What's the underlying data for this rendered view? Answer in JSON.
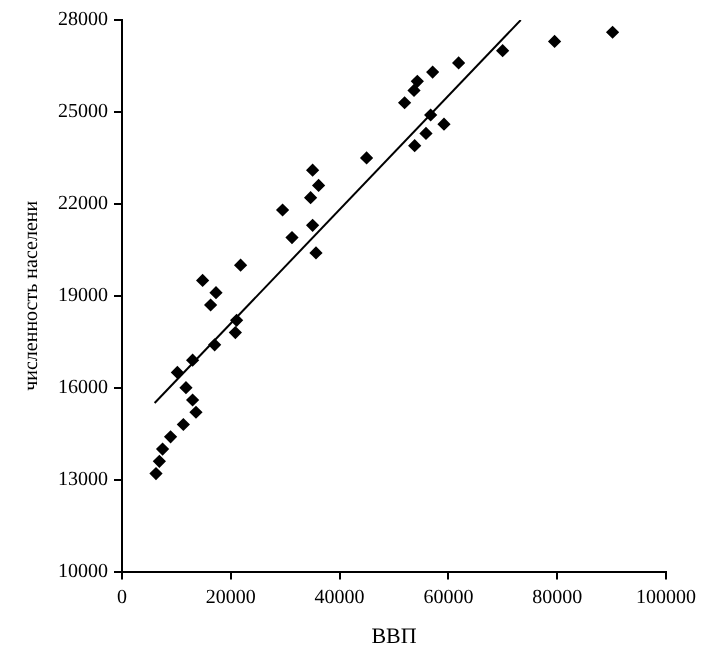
{
  "chart_data": {
    "type": "scatter",
    "xlabel": "ВВП",
    "ylabel": "численность населени",
    "xlim": [
      0,
      100000
    ],
    "ylim": [
      10000,
      28000
    ],
    "xticks": [
      0,
      20000,
      40000,
      60000,
      80000,
      100000
    ],
    "yticks": [
      10000,
      13000,
      16000,
      19000,
      22000,
      25000,
      28000
    ],
    "grid": false,
    "legend": false,
    "series": [
      {
        "marker": "diamond",
        "color": "#000000",
        "x": [
          6250,
          6870,
          7460,
          8930,
          10180,
          11280,
          11760,
          12980,
          12980,
          13600,
          17030,
          20840,
          21070,
          14820,
          16290,
          17280,
          21800,
          29520,
          31250,
          34670,
          35040,
          36140,
          35040,
          35660,
          44960,
          51950,
          53680,
          54290,
          57100,
          61880,
          53800,
          55880,
          56740,
          59190,
          69970,
          79520,
          90180
        ],
        "values": [
          13200,
          13600,
          14000,
          14400,
          16500,
          14800,
          16000,
          16900,
          15600,
          15200,
          17400,
          17800,
          18200,
          19500,
          18700,
          19100,
          20000,
          21800,
          20900,
          22200,
          23100,
          22600,
          21300,
          20400,
          23500,
          25300,
          25700,
          26000,
          26300,
          26600,
          23900,
          24300,
          24900,
          24600,
          27000,
          27300,
          27600
        ]
      },
      {
        "type": "line",
        "color": "#000000",
        "x": [
          6000,
          73300
        ],
        "values": [
          15500,
          28000
        ]
      }
    ]
  }
}
